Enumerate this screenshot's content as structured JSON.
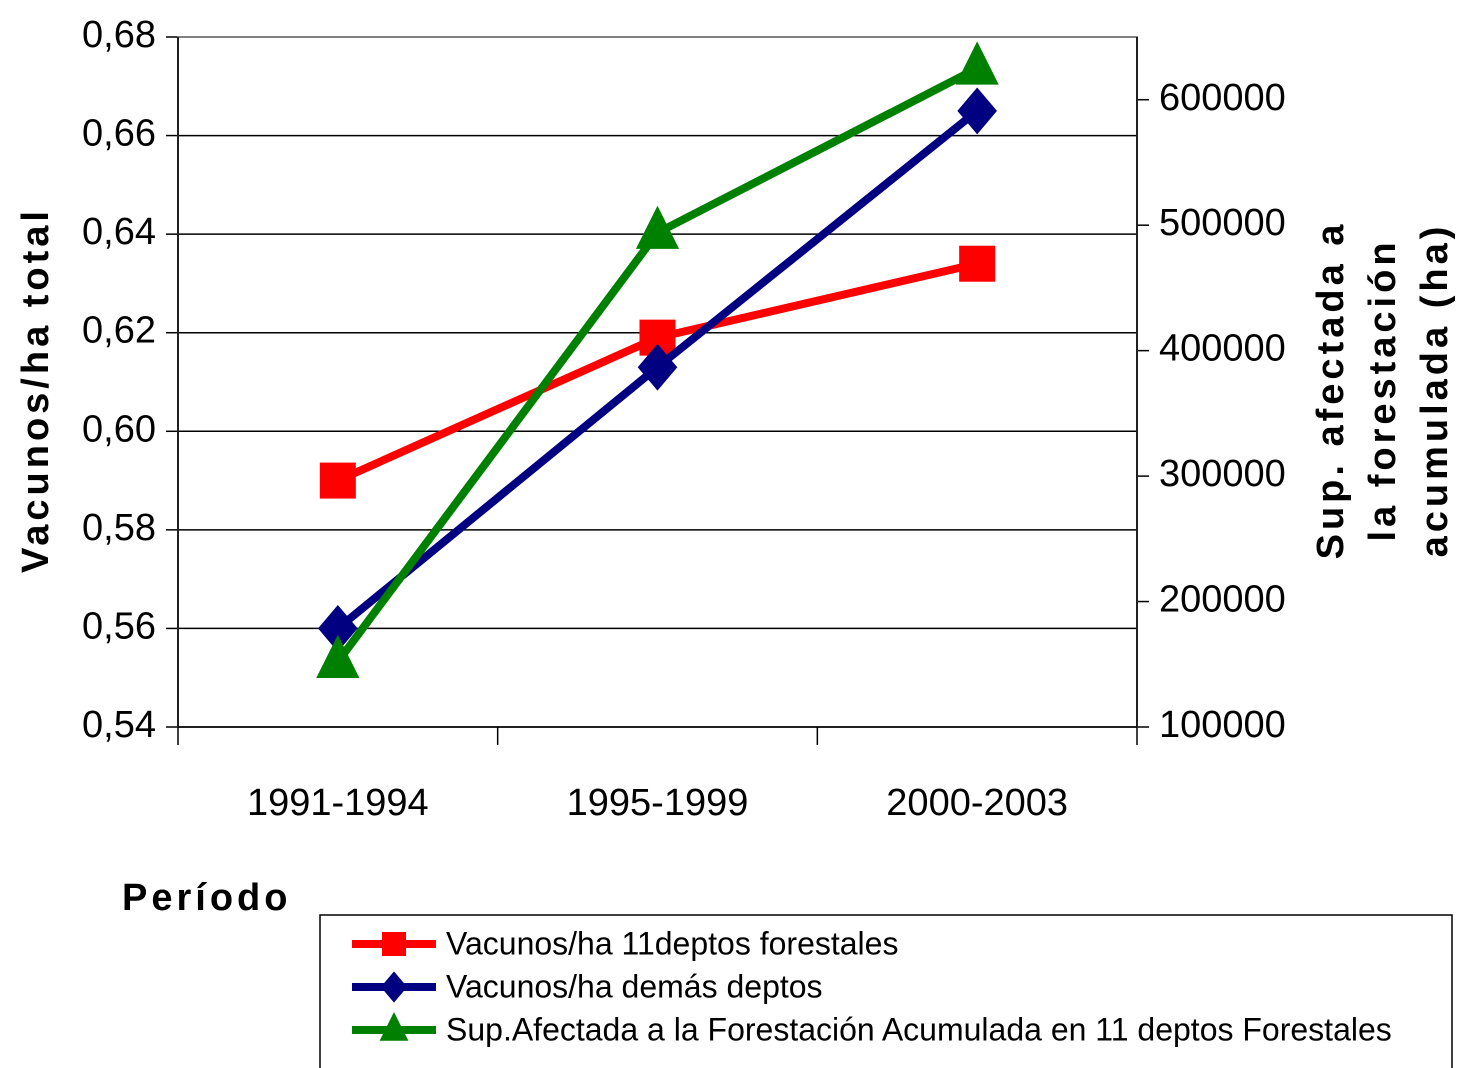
{
  "chart_data": {
    "type": "line",
    "categories": [
      "1991-1994",
      "1995-1999",
      "2000-2003"
    ],
    "x_label": "Período",
    "y_label": "Vacunos/ha total",
    "y2_label": [
      "Sup. afectada a",
      "la forestación",
      "acumulada (ha)"
    ],
    "series": [
      {
        "name": "Vacunos/ha 11deptos forestales",
        "color": "#ff0000",
        "marker": "square",
        "values": [
          0.59,
          0.619,
          0.634
        ]
      },
      {
        "name": "Vacunos/ha demás deptos",
        "color": "#000080",
        "marker": "diamond",
        "values": [
          0.56,
          0.613,
          0.665
        ]
      },
      {
        "name": "Sup.Afectada a la Forestación Acumulada en 11 deptos Forestales",
        "color": "#008000",
        "marker": "triangle",
        "axis": "y2",
        "values": [
          152000,
          494000,
          625000
        ]
      }
    ],
    "ylim": [
      0.54,
      0.68
    ],
    "yticks": [
      {
        "value": 0.54,
        "label": "0,54"
      },
      {
        "value": 0.56,
        "label": "0,56"
      },
      {
        "value": 0.58,
        "label": "0,58"
      },
      {
        "value": 0.6,
        "label": "0,60"
      },
      {
        "value": 0.62,
        "label": "0,62"
      },
      {
        "value": 0.64,
        "label": "0,64"
      },
      {
        "value": 0.66,
        "label": "0,66"
      },
      {
        "value": 0.68,
        "label": "0,68"
      }
    ],
    "y2lim": [
      100000,
      650000
    ],
    "y2ticks": [
      100000,
      200000,
      300000,
      400000,
      500000,
      600000
    ],
    "grid": true
  }
}
